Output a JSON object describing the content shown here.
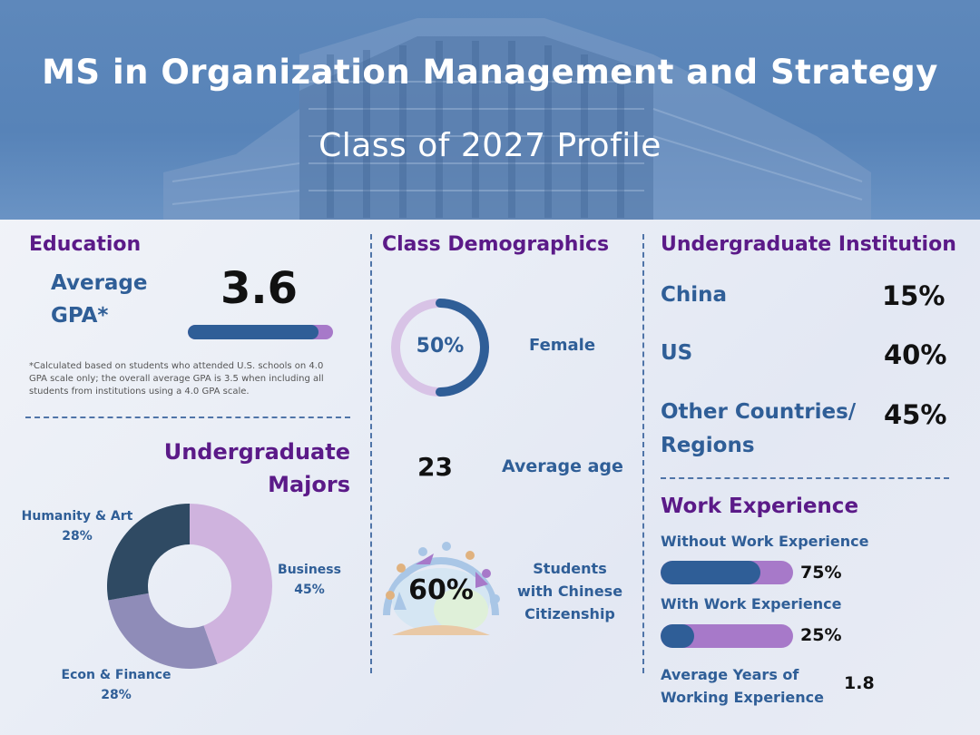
{
  "header": {
    "title": "MS in Organization Management and Strategy",
    "subtitle": "Class of 2027 Profile"
  },
  "education": {
    "heading": "Education",
    "gpa_label_1": "Average",
    "gpa_label_2": "GPA*",
    "gpa_value": "3.6",
    "gpa_fraction": 0.9,
    "note": "*Calculated based on students who attended U.S. schools on 4.0 GPA scale only; the overall average GPA is 3.5 when including all students from institutions using a 4.0 GPA scale."
  },
  "majors": {
    "heading_1": "Undergraduate",
    "heading_2": "Majors",
    "slices": [
      {
        "name": "Business",
        "pct": "45%",
        "value": 45,
        "color": "#cfb3de"
      },
      {
        "name": "Econ & Finance",
        "pct": "28%",
        "value": 28,
        "color": "#8f8cb8"
      },
      {
        "name": "Humanity & Art",
        "pct": "28%",
        "value": 28,
        "color": "#2f4a63"
      }
    ]
  },
  "demographics": {
    "heading": "Class Demographics",
    "female_pct": "50%",
    "female_value": 50,
    "female_label": "Female",
    "age_value": "23",
    "age_label": "Average age",
    "citizen_pct": "60%",
    "citizen_label_1": "Students",
    "citizen_label_2": "with Chinese",
    "citizen_label_3": "Citizenship"
  },
  "institution": {
    "heading": "Undergraduate Institution",
    "rows": [
      {
        "label": "China",
        "value": "15%"
      },
      {
        "label": "US",
        "value": "40%"
      },
      {
        "label_1": "Other Countries/",
        "label_2": "Regions",
        "value": "45%"
      }
    ]
  },
  "work": {
    "heading": "Work Experience",
    "without_label": "Without Work Experience",
    "without_value": "75%",
    "without_fraction": 0.75,
    "with_label": "With Work Experience",
    "with_value": "25%",
    "with_fraction": 0.25,
    "years_label_1": "Average Years of",
    "years_label_2": "Working Experience",
    "years_value": "1.8"
  },
  "colors": {
    "navy": "#2f5e97",
    "purple": "#5b1a88",
    "lavender": "#a779c9"
  }
}
